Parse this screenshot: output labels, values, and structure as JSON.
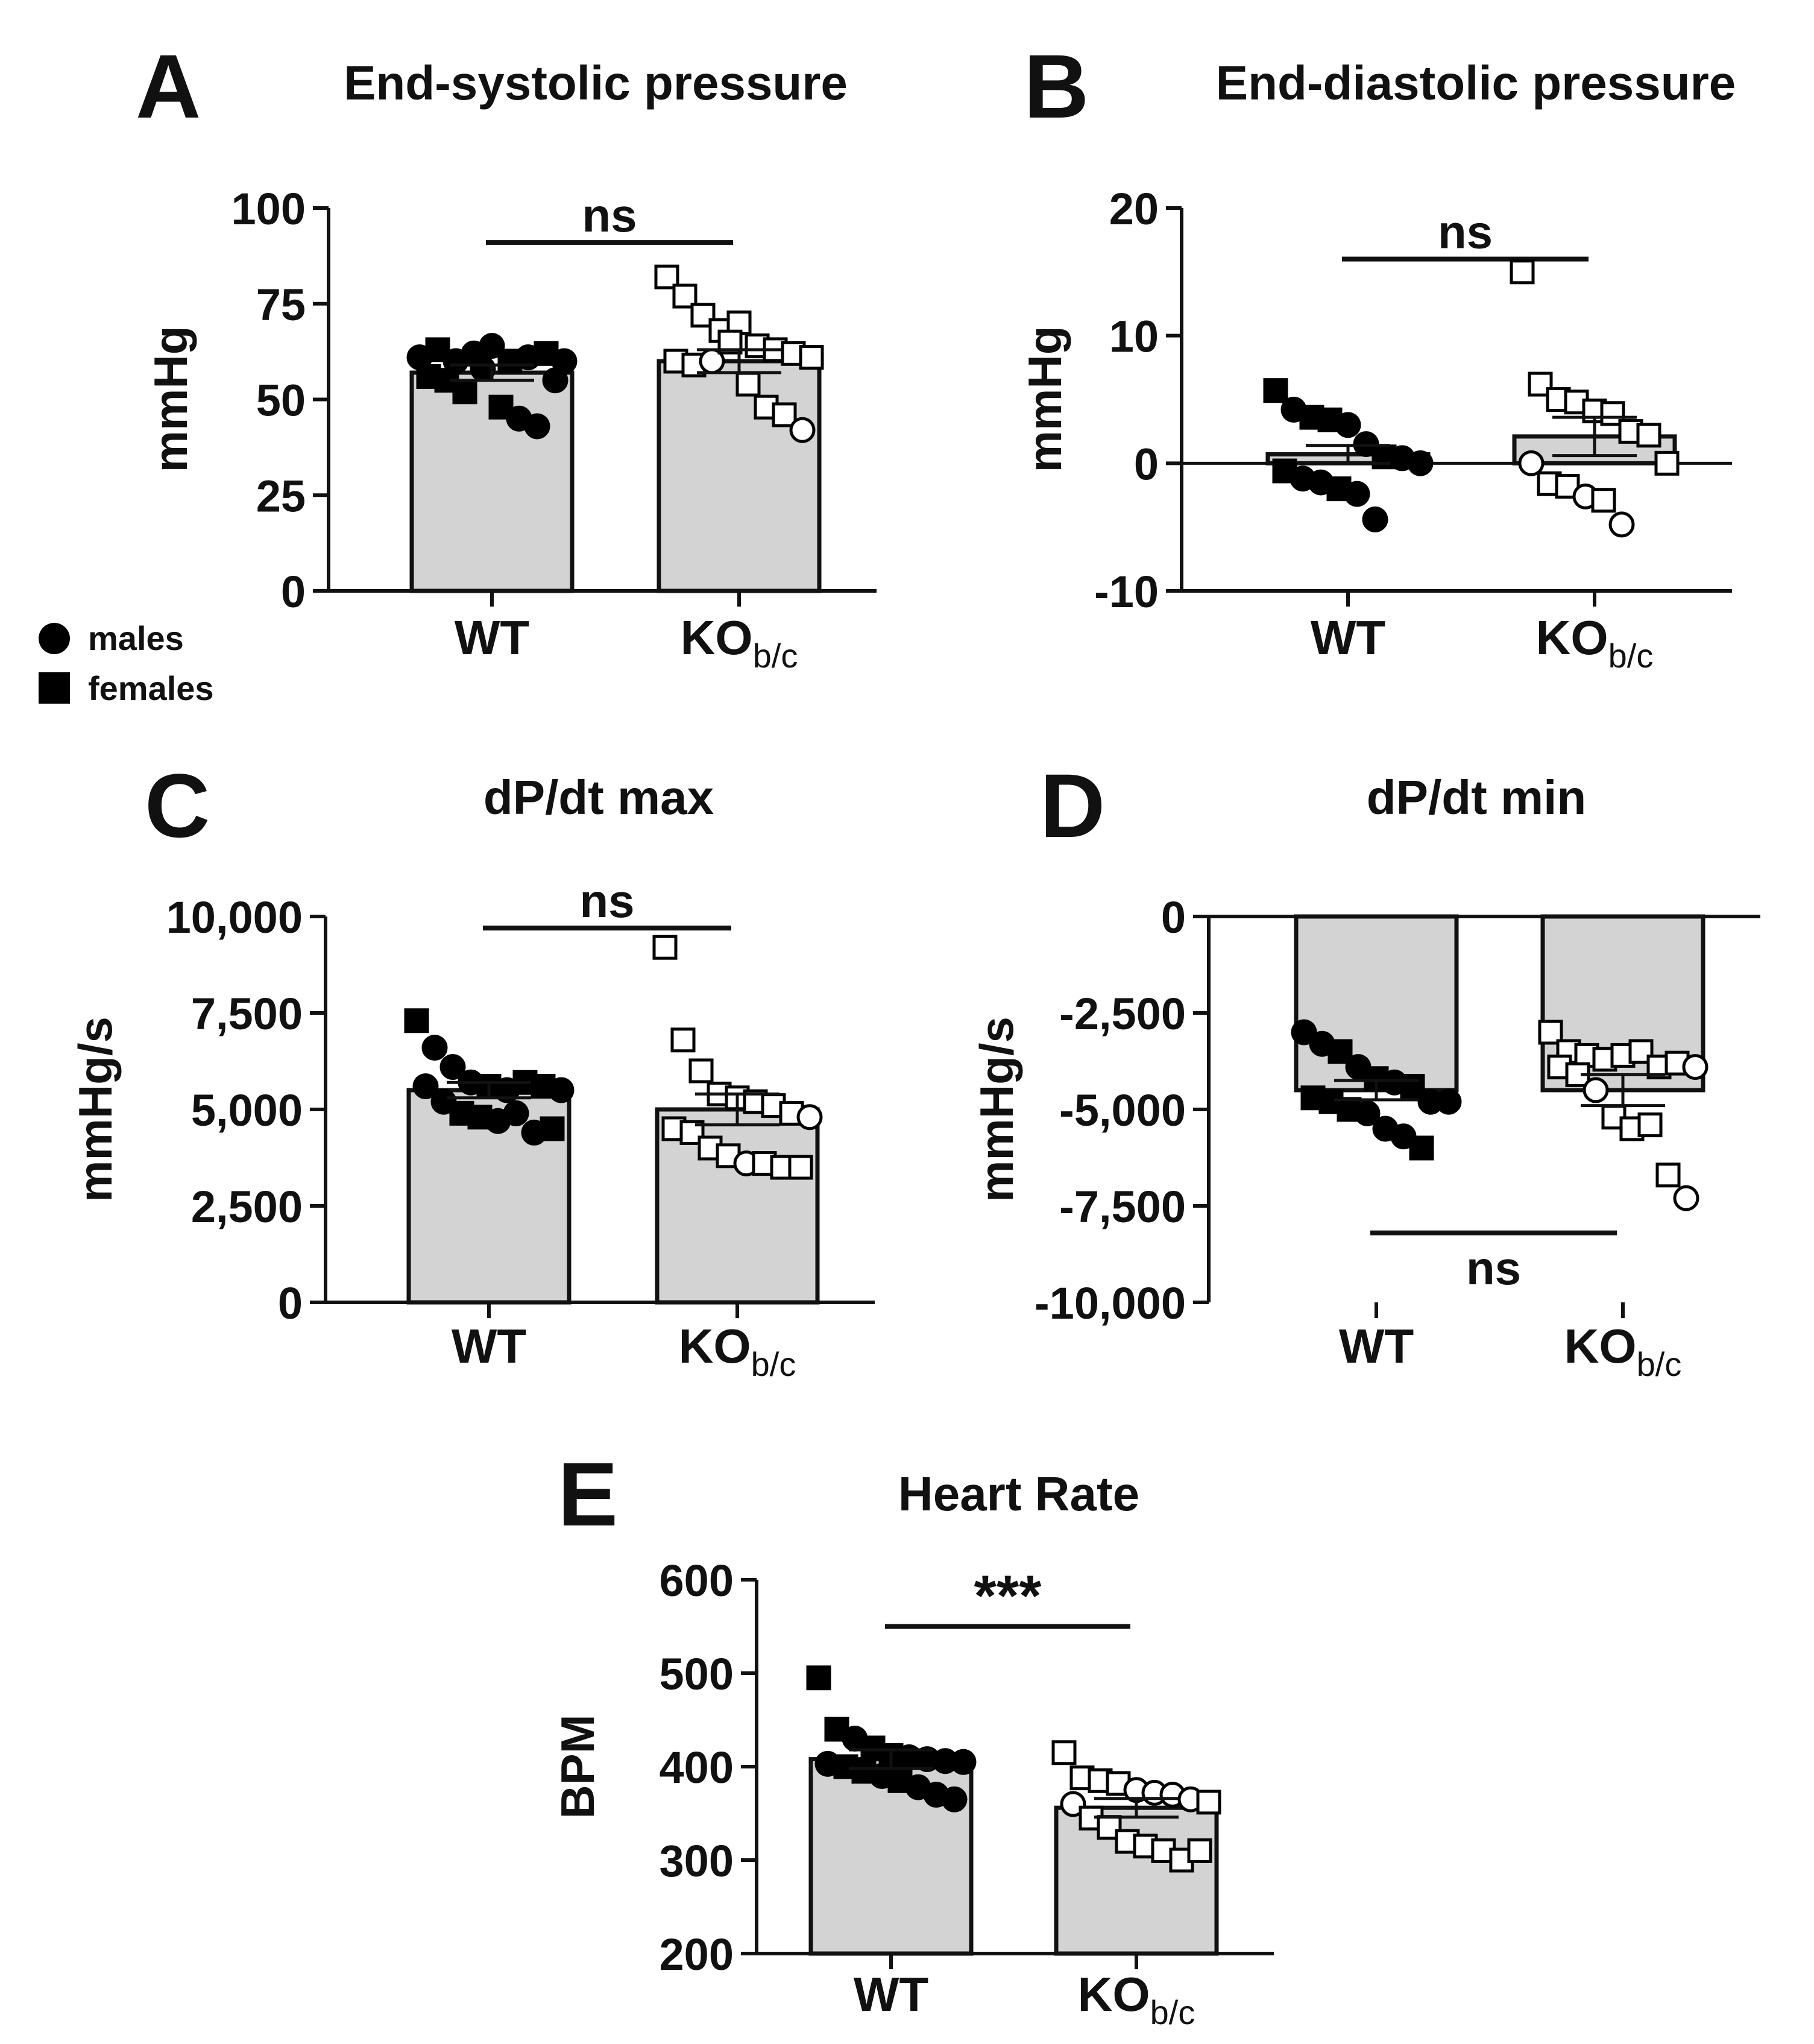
{
  "legend": {
    "males": "males",
    "females": "females"
  },
  "chart_data": [
    {
      "id": "A",
      "type": "bar",
      "panel_label": "A",
      "title": "End-systolic pressure",
      "ylabel": "mmHg",
      "ylim": [
        0,
        100
      ],
      "yticks": [
        0,
        25,
        50,
        75,
        100
      ],
      "ytick_labels": [
        "0",
        "25",
        "50",
        "75",
        "100"
      ],
      "categories": [
        "WT",
        "KO"
      ],
      "category_subscripts": [
        "",
        "b/c"
      ],
      "bars": [
        57,
        60
      ],
      "sem": [
        2,
        3
      ],
      "significance": {
        "label": "ns",
        "y": 91
      },
      "points": [
        [
          [
            61,
            "m"
          ],
          [
            63,
            "f"
          ],
          [
            60,
            "m"
          ],
          [
            62,
            "m"
          ],
          [
            64,
            "m"
          ],
          [
            60,
            "f"
          ],
          [
            61,
            "m"
          ],
          [
            62,
            "f"
          ],
          [
            60,
            "m"
          ],
          [
            56,
            "f"
          ],
          [
            55,
            "f"
          ],
          [
            52,
            "f"
          ],
          [
            58,
            "m"
          ],
          [
            48,
            "f"
          ],
          [
            45,
            "m"
          ],
          [
            43,
            "m"
          ],
          [
            55,
            "m"
          ]
        ],
        [
          [
            82,
            "f"
          ],
          [
            77,
            "f"
          ],
          [
            72,
            "f"
          ],
          [
            68,
            "f"
          ],
          [
            70,
            "f"
          ],
          [
            64,
            "f"
          ],
          [
            63,
            "f"
          ],
          [
            62,
            "f"
          ],
          [
            61,
            "f"
          ],
          [
            60,
            "f"
          ],
          [
            59,
            "f"
          ],
          [
            60,
            "m"
          ],
          [
            65,
            "f"
          ],
          [
            54,
            "f"
          ],
          [
            48,
            "f"
          ],
          [
            46,
            "f"
          ],
          [
            42,
            "m"
          ]
        ]
      ]
    },
    {
      "id": "B",
      "type": "bar",
      "panel_label": "B",
      "title": "End-diastolic pressure",
      "ylabel": "mmHg",
      "ylim": [
        -10,
        20
      ],
      "yticks": [
        -10,
        0,
        10,
        20
      ],
      "ytick_labels": [
        "-10",
        "0",
        "10",
        "20"
      ],
      "categories": [
        "WT",
        "KO"
      ],
      "category_subscripts": [
        "",
        "b/c"
      ],
      "bars": [
        0.7,
        2.1
      ],
      "sem": [
        0.7,
        1.5
      ],
      "significance": {
        "label": "ns",
        "y": 16
      },
      "points": [
        [
          [
            5.7,
            "f"
          ],
          [
            4.2,
            "m"
          ],
          [
            3.6,
            "f"
          ],
          [
            3.4,
            "f"
          ],
          [
            3.0,
            "m"
          ],
          [
            1.5,
            "m"
          ],
          [
            0.5,
            "f"
          ],
          [
            0.4,
            "m"
          ],
          [
            0.0,
            "m"
          ],
          [
            -0.6,
            "f"
          ],
          [
            -1.2,
            "m"
          ],
          [
            -1.5,
            "m"
          ],
          [
            -2.0,
            "f"
          ],
          [
            -2.4,
            "m"
          ],
          [
            -4.4,
            "m"
          ]
        ],
        [
          [
            15.0,
            "f"
          ],
          [
            6.2,
            "f"
          ],
          [
            5.0,
            "f"
          ],
          [
            4.8,
            "f"
          ],
          [
            4.1,
            "f"
          ],
          [
            3.9,
            "f"
          ],
          [
            2.5,
            "f"
          ],
          [
            2.2,
            "f"
          ],
          [
            0.0,
            "f"
          ],
          [
            0.0,
            "m"
          ],
          [
            -1.6,
            "f"
          ],
          [
            -1.8,
            "f"
          ],
          [
            -2.6,
            "m"
          ],
          [
            -2.9,
            "f"
          ],
          [
            -4.8,
            "m"
          ]
        ]
      ]
    },
    {
      "id": "C",
      "type": "bar",
      "panel_label": "C",
      "title": "dP/dt max",
      "ylabel": "mmHg/s",
      "ylim": [
        0,
        10000
      ],
      "yticks": [
        0,
        2500,
        5000,
        7500,
        10000
      ],
      "ytick_labels": [
        "0",
        "2,500",
        "5,000",
        "7,500",
        "10,000"
      ],
      "categories": [
        "WT",
        "KO"
      ],
      "category_subscripts": [
        "",
        "b/c"
      ],
      "bars": [
        5500,
        5000
      ],
      "sem": [
        200,
        400
      ],
      "significance": {
        "label": "ns",
        "y": 9700
      },
      "points": [
        [
          [
            7300,
            "f"
          ],
          [
            6600,
            "m"
          ],
          [
            6100,
            "m"
          ],
          [
            5700,
            "m"
          ],
          [
            5600,
            "f"
          ],
          [
            5500,
            "m"
          ],
          [
            5700,
            "f"
          ],
          [
            5600,
            "f"
          ],
          [
            5500,
            "m"
          ],
          [
            5600,
            "m"
          ],
          [
            5200,
            "m"
          ],
          [
            4900,
            "f"
          ],
          [
            4800,
            "f"
          ],
          [
            4700,
            "m"
          ],
          [
            4900,
            "m"
          ],
          [
            4400,
            "m"
          ],
          [
            4500,
            "f"
          ]
        ],
        [
          [
            9200,
            "f"
          ],
          [
            6800,
            "f"
          ],
          [
            6000,
            "f"
          ],
          [
            5400,
            "f"
          ],
          [
            5300,
            "f"
          ],
          [
            5200,
            "f"
          ],
          [
            5100,
            "f"
          ],
          [
            4900,
            "f"
          ],
          [
            4800,
            "m"
          ],
          [
            4500,
            "f"
          ],
          [
            4400,
            "f"
          ],
          [
            4000,
            "f"
          ],
          [
            3800,
            "f"
          ],
          [
            3600,
            "m"
          ],
          [
            3600,
            "f"
          ],
          [
            3500,
            "f"
          ],
          [
            3500,
            "f"
          ]
        ]
      ]
    },
    {
      "id": "D",
      "type": "bar",
      "panel_label": "D",
      "title": "dP/dt min",
      "ylabel": "mmHg/s",
      "ylim": [
        -10000,
        0
      ],
      "yticks": [
        -10000,
        -7500,
        -5000,
        -2500,
        0
      ],
      "ytick_labels": [
        "-10,000",
        "-7,500",
        "-5,000",
        "-2,500",
        "0"
      ],
      "categories": [
        "WT",
        "KO"
      ],
      "category_subscripts": [
        "",
        "b/c"
      ],
      "bars": [
        -4500,
        -4500
      ],
      "sem": [
        250,
        400
      ],
      "significance": {
        "label": "ns",
        "y": -8200
      },
      "points": [
        [
          [
            -3000,
            "m"
          ],
          [
            -3300,
            "m"
          ],
          [
            -3500,
            "f"
          ],
          [
            -3900,
            "m"
          ],
          [
            -4200,
            "f"
          ],
          [
            -4300,
            "m"
          ],
          [
            -4400,
            "f"
          ],
          [
            -4800,
            "m"
          ],
          [
            -4800,
            "m"
          ],
          [
            -4700,
            "f"
          ],
          [
            -4800,
            "f"
          ],
          [
            -5000,
            "f"
          ],
          [
            -5100,
            "m"
          ],
          [
            -5500,
            "m"
          ],
          [
            -5700,
            "m"
          ],
          [
            -6000,
            "f"
          ]
        ],
        [
          [
            -3000,
            "f"
          ],
          [
            -3500,
            "f"
          ],
          [
            -3600,
            "f"
          ],
          [
            -3700,
            "f"
          ],
          [
            -3600,
            "f"
          ],
          [
            -3500,
            "f"
          ],
          [
            -3900,
            "f"
          ],
          [
            -3800,
            "f"
          ],
          [
            -3900,
            "m"
          ],
          [
            -3900,
            "f"
          ],
          [
            -4100,
            "f"
          ],
          [
            -4500,
            "m"
          ],
          [
            -5200,
            "f"
          ],
          [
            -5500,
            "f"
          ],
          [
            -5400,
            "f"
          ],
          [
            -6700,
            "f"
          ],
          [
            -7300,
            "m"
          ]
        ]
      ]
    },
    {
      "id": "E",
      "type": "bar",
      "panel_label": "E",
      "title": "Heart Rate",
      "ylabel": "BPM",
      "ylim": [
        200,
        600
      ],
      "yticks": [
        200,
        300,
        400,
        500,
        600
      ],
      "ytick_labels": [
        "200",
        "300",
        "400",
        "500",
        "600"
      ],
      "categories": [
        "WT",
        "KO"
      ],
      "category_subscripts": [
        "",
        "b/c"
      ],
      "bars": [
        408,
        356
      ],
      "sem": [
        10,
        10
      ],
      "significance": {
        "label": "***",
        "y": 550
      },
      "points": [
        [
          [
            495,
            "f"
          ],
          [
            440,
            "f"
          ],
          [
            430,
            "m"
          ],
          [
            420,
            "f"
          ],
          [
            412,
            "f"
          ],
          [
            410,
            "m"
          ],
          [
            408,
            "m"
          ],
          [
            406,
            "m"
          ],
          [
            405,
            "m"
          ],
          [
            403,
            "m"
          ],
          [
            400,
            "f"
          ],
          [
            395,
            "f"
          ],
          [
            390,
            "m"
          ],
          [
            385,
            "f"
          ],
          [
            378,
            "m"
          ],
          [
            370,
            "m"
          ],
          [
            365,
            "m"
          ]
        ],
        [
          [
            415,
            "f"
          ],
          [
            388,
            "f"
          ],
          [
            385,
            "f"
          ],
          [
            382,
            "f"
          ],
          [
            375,
            "m"
          ],
          [
            372,
            "m"
          ],
          [
            370,
            "m"
          ],
          [
            365,
            "m"
          ],
          [
            362,
            "f"
          ],
          [
            360,
            "m"
          ],
          [
            345,
            "f"
          ],
          [
            335,
            "f"
          ],
          [
            320,
            "f"
          ],
          [
            315,
            "f"
          ],
          [
            310,
            "f"
          ],
          [
            300,
            "f"
          ],
          [
            310,
            "f"
          ]
        ]
      ]
    }
  ]
}
